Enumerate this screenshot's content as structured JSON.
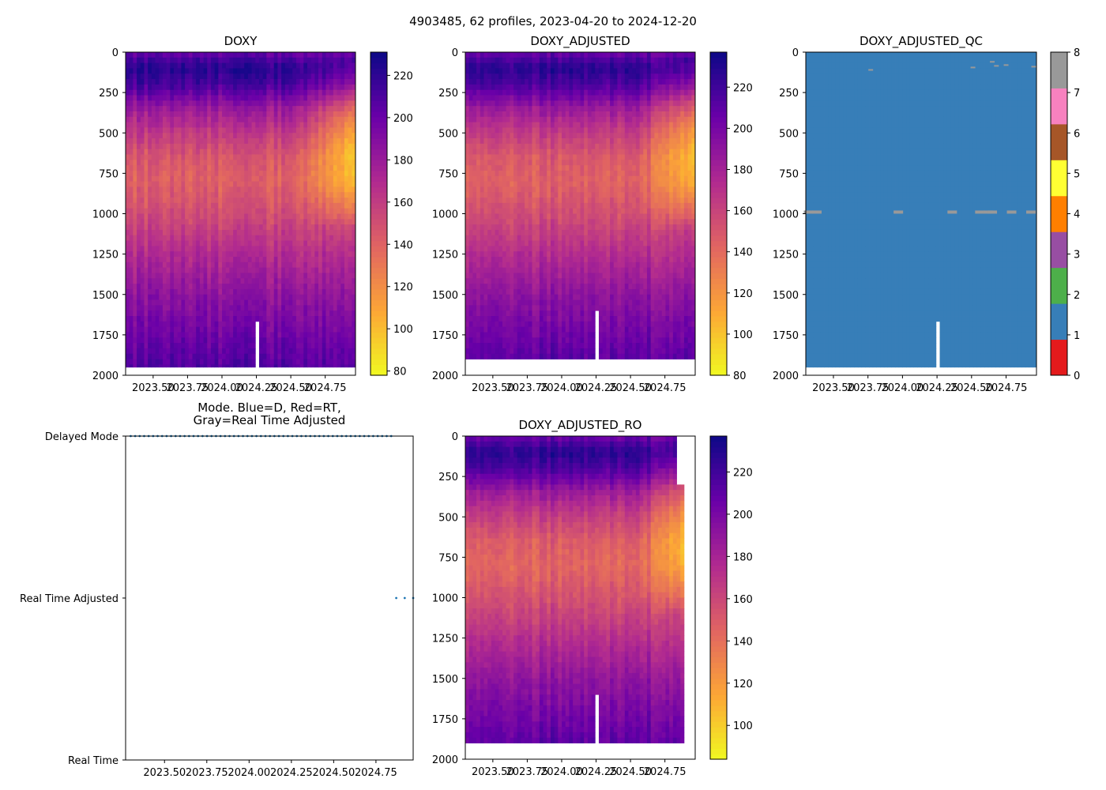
{
  "figure": {
    "suptitle": "4903485, 62 profiles, 2023-04-20 to 2024-12-20"
  },
  "colormaps": {
    "plasma_r": [
      "#f0f921",
      "#fca636",
      "#e16462",
      "#b12a90",
      "#6a00a8",
      "#0d0887"
    ],
    "qc": [
      "#e41a1c",
      "#377eb8",
      "#4daf4a",
      "#984ea3",
      "#ff7f00",
      "#ffff33",
      "#a65628",
      "#f781bf",
      "#999999"
    ]
  },
  "chart_data": [
    {
      "id": "doxy",
      "type": "heatmap",
      "title": "DOXY",
      "xlabel": "",
      "ylabel": "",
      "x_tick_labels": [
        "2023.50",
        "2023.75",
        "2024.00",
        "2024.25",
        "2024.50",
        "2024.75"
      ],
      "x_ticks": [
        2023.5,
        2023.75,
        2024.0,
        2024.25,
        2024.5,
        2024.75
      ],
      "xlim": [
        2023.3,
        2024.97
      ],
      "ylim": [
        2000,
        0
      ],
      "y_ticks": [
        0,
        250,
        500,
        750,
        1000,
        1250,
        1500,
        1750,
        2000
      ],
      "y_tick_labels": [
        "0",
        "250",
        "500",
        "750",
        "1000",
        "1250",
        "1500",
        "1750",
        "2000"
      ],
      "colorbar": {
        "range": [
          78,
          231
        ],
        "ticks": [
          80,
          100,
          120,
          140,
          160,
          180,
          200,
          220
        ],
        "tick_labels": [
          "80",
          "100",
          "120",
          "140",
          "160",
          "180",
          "200",
          "220"
        ]
      },
      "profile": {
        "depth": [
          0,
          100,
          200,
          350,
          500,
          650,
          800,
          1000,
          1200,
          1500,
          1800,
          2000
        ],
        "value": [
          200,
          222,
          212,
          180,
          160,
          145,
          140,
          150,
          165,
          185,
          200,
          210
        ]
      },
      "max_depth": 1950,
      "gap_time": 2024.25,
      "gap_top": 1650
    },
    {
      "id": "doxy_adj",
      "type": "heatmap",
      "title": "DOXY_ADJUSTED",
      "xlabel": "",
      "ylabel": "",
      "x_tick_labels": [
        "2023.50",
        "2023.75",
        "2024.00",
        "2024.25",
        "2024.50",
        "2024.75"
      ],
      "x_ticks": [
        2023.5,
        2023.75,
        2024.0,
        2024.25,
        2024.5,
        2024.75
      ],
      "xlim": [
        2023.3,
        2024.97
      ],
      "ylim": [
        2000,
        0
      ],
      "y_ticks": [
        0,
        250,
        500,
        750,
        1000,
        1250,
        1500,
        1750,
        2000
      ],
      "y_tick_labels": [
        "0",
        "250",
        "500",
        "750",
        "1000",
        "1250",
        "1500",
        "1750",
        "2000"
      ],
      "colorbar": {
        "range": [
          80,
          237
        ],
        "ticks": [
          80,
          100,
          120,
          140,
          160,
          180,
          200,
          220
        ],
        "tick_labels": [
          "80",
          "100",
          "120",
          "140",
          "160",
          "180",
          "200",
          "220"
        ]
      },
      "profile": {
        "depth": [
          0,
          100,
          200,
          350,
          500,
          650,
          800,
          1000,
          1200,
          1500,
          1800,
          2000
        ],
        "value": [
          205,
          228,
          217,
          185,
          164,
          149,
          144,
          154,
          169,
          190,
          205,
          215
        ]
      },
      "max_depth": 1900,
      "gap_time": 2024.25,
      "gap_top": 1600
    },
    {
      "id": "doxy_qc",
      "type": "heatmap",
      "title": "DOXY_ADJUSTED_QC",
      "xlabel": "",
      "ylabel": "",
      "x_tick_labels": [
        "2023.50",
        "2023.75",
        "2024.00",
        "2024.25",
        "2024.50",
        "2024.75"
      ],
      "x_ticks": [
        2023.5,
        2023.75,
        2024.0,
        2024.25,
        2024.5,
        2024.75
      ],
      "xlim": [
        2023.3,
        2024.97
      ],
      "ylim": [
        2000,
        0
      ],
      "y_ticks": [
        0,
        250,
        500,
        750,
        1000,
        1250,
        1500,
        1750,
        2000
      ],
      "y_tick_labels": [
        "0",
        "250",
        "500",
        "750",
        "1000",
        "1250",
        "1500",
        "1750",
        "2000"
      ],
      "colorbar": {
        "range": [
          0,
          8
        ],
        "ticks": [
          0,
          1,
          2,
          3,
          4,
          5,
          6,
          7,
          8
        ],
        "tick_labels": [
          "0",
          "1",
          "2",
          "3",
          "4",
          "5",
          "6",
          "7",
          "8"
        ]
      },
      "dominant_flag": 1,
      "flag8_marks": [
        {
          "time": 2023.32,
          "depth": 990
        },
        {
          "time": 2023.38,
          "depth": 990
        },
        {
          "time": 2023.97,
          "depth": 990
        },
        {
          "time": 2024.36,
          "depth": 990
        },
        {
          "time": 2024.56,
          "depth": 990
        },
        {
          "time": 2024.62,
          "depth": 990
        },
        {
          "time": 2024.65,
          "depth": 990
        },
        {
          "time": 2024.79,
          "depth": 990
        },
        {
          "time": 2024.93,
          "depth": 990
        },
        {
          "time": 2023.77,
          "depth": 110
        },
        {
          "time": 2024.51,
          "depth": 95
        },
        {
          "time": 2024.65,
          "depth": 60
        },
        {
          "time": 2024.68,
          "depth": 85
        },
        {
          "time": 2024.75,
          "depth": 80
        },
        {
          "time": 2024.95,
          "depth": 90
        }
      ],
      "max_depth": 1950,
      "gap_time": 2024.25,
      "gap_top": 1650
    },
    {
      "id": "mode",
      "type": "scatter",
      "title": "Mode. Blue=D, Red=RT,\nGray=Real Time Adjusted",
      "title_lines": [
        "Mode. Blue=D, Red=RT,",
        "Gray=Real Time Adjusted"
      ],
      "x_tick_labels": [
        "2023.50",
        "2023.75",
        "2024.00",
        "2024.25",
        "2024.50",
        "2024.75"
      ],
      "x_ticks": [
        2023.5,
        2023.75,
        2024.0,
        2024.25,
        2024.5,
        2024.75
      ],
      "xlim": [
        2023.27,
        2024.97
      ],
      "y_categories": [
        "Real Time",
        "Real Time Adjusted",
        "Delayed Mode"
      ],
      "series": [
        {
          "name": "Delayed Mode",
          "level": 2,
          "x_start": 2023.3,
          "x_end": 2024.84,
          "count": 59
        },
        {
          "name": "Real Time Adjusted",
          "level": 1,
          "x_start": 2024.87,
          "x_end": 2024.97,
          "count": 3
        }
      ],
      "marker_color": "#1f77b4"
    },
    {
      "id": "doxy_ro",
      "type": "heatmap",
      "title": "DOXY_ADJUSTED_RO",
      "xlabel": "",
      "ylabel": "",
      "x_tick_labels": [
        "2023.50",
        "2023.75",
        "2024.00",
        "2024.25",
        "2024.50",
        "2024.75"
      ],
      "x_ticks": [
        2023.5,
        2023.75,
        2024.0,
        2024.25,
        2024.5,
        2024.75
      ],
      "xlim": [
        2023.3,
        2024.97
      ],
      "ylim": [
        2000,
        0
      ],
      "y_ticks": [
        0,
        250,
        500,
        750,
        1000,
        1250,
        1500,
        1750,
        2000
      ],
      "y_tick_labels": [
        "0",
        "250",
        "500",
        "750",
        "1000",
        "1250",
        "1500",
        "1750",
        "2000"
      ],
      "colorbar": {
        "range": [
          84,
          237
        ],
        "ticks": [
          100,
          120,
          140,
          160,
          180,
          200,
          220
        ],
        "tick_labels": [
          "100",
          "120",
          "140",
          "160",
          "180",
          "200",
          "220"
        ]
      },
      "profile": {
        "depth": [
          0,
          100,
          200,
          350,
          500,
          650,
          800,
          1000,
          1200,
          1500,
          1800,
          2000
        ],
        "value": [
          205,
          228,
          217,
          185,
          164,
          149,
          144,
          154,
          169,
          190,
          205,
          215
        ]
      },
      "max_depth": 1900,
      "gap_time": 2024.25,
      "gap_top": 1600,
      "data_end_time": 2024.84,
      "partial_column": {
        "time": 2024.86,
        "top_depth": 300
      }
    }
  ]
}
